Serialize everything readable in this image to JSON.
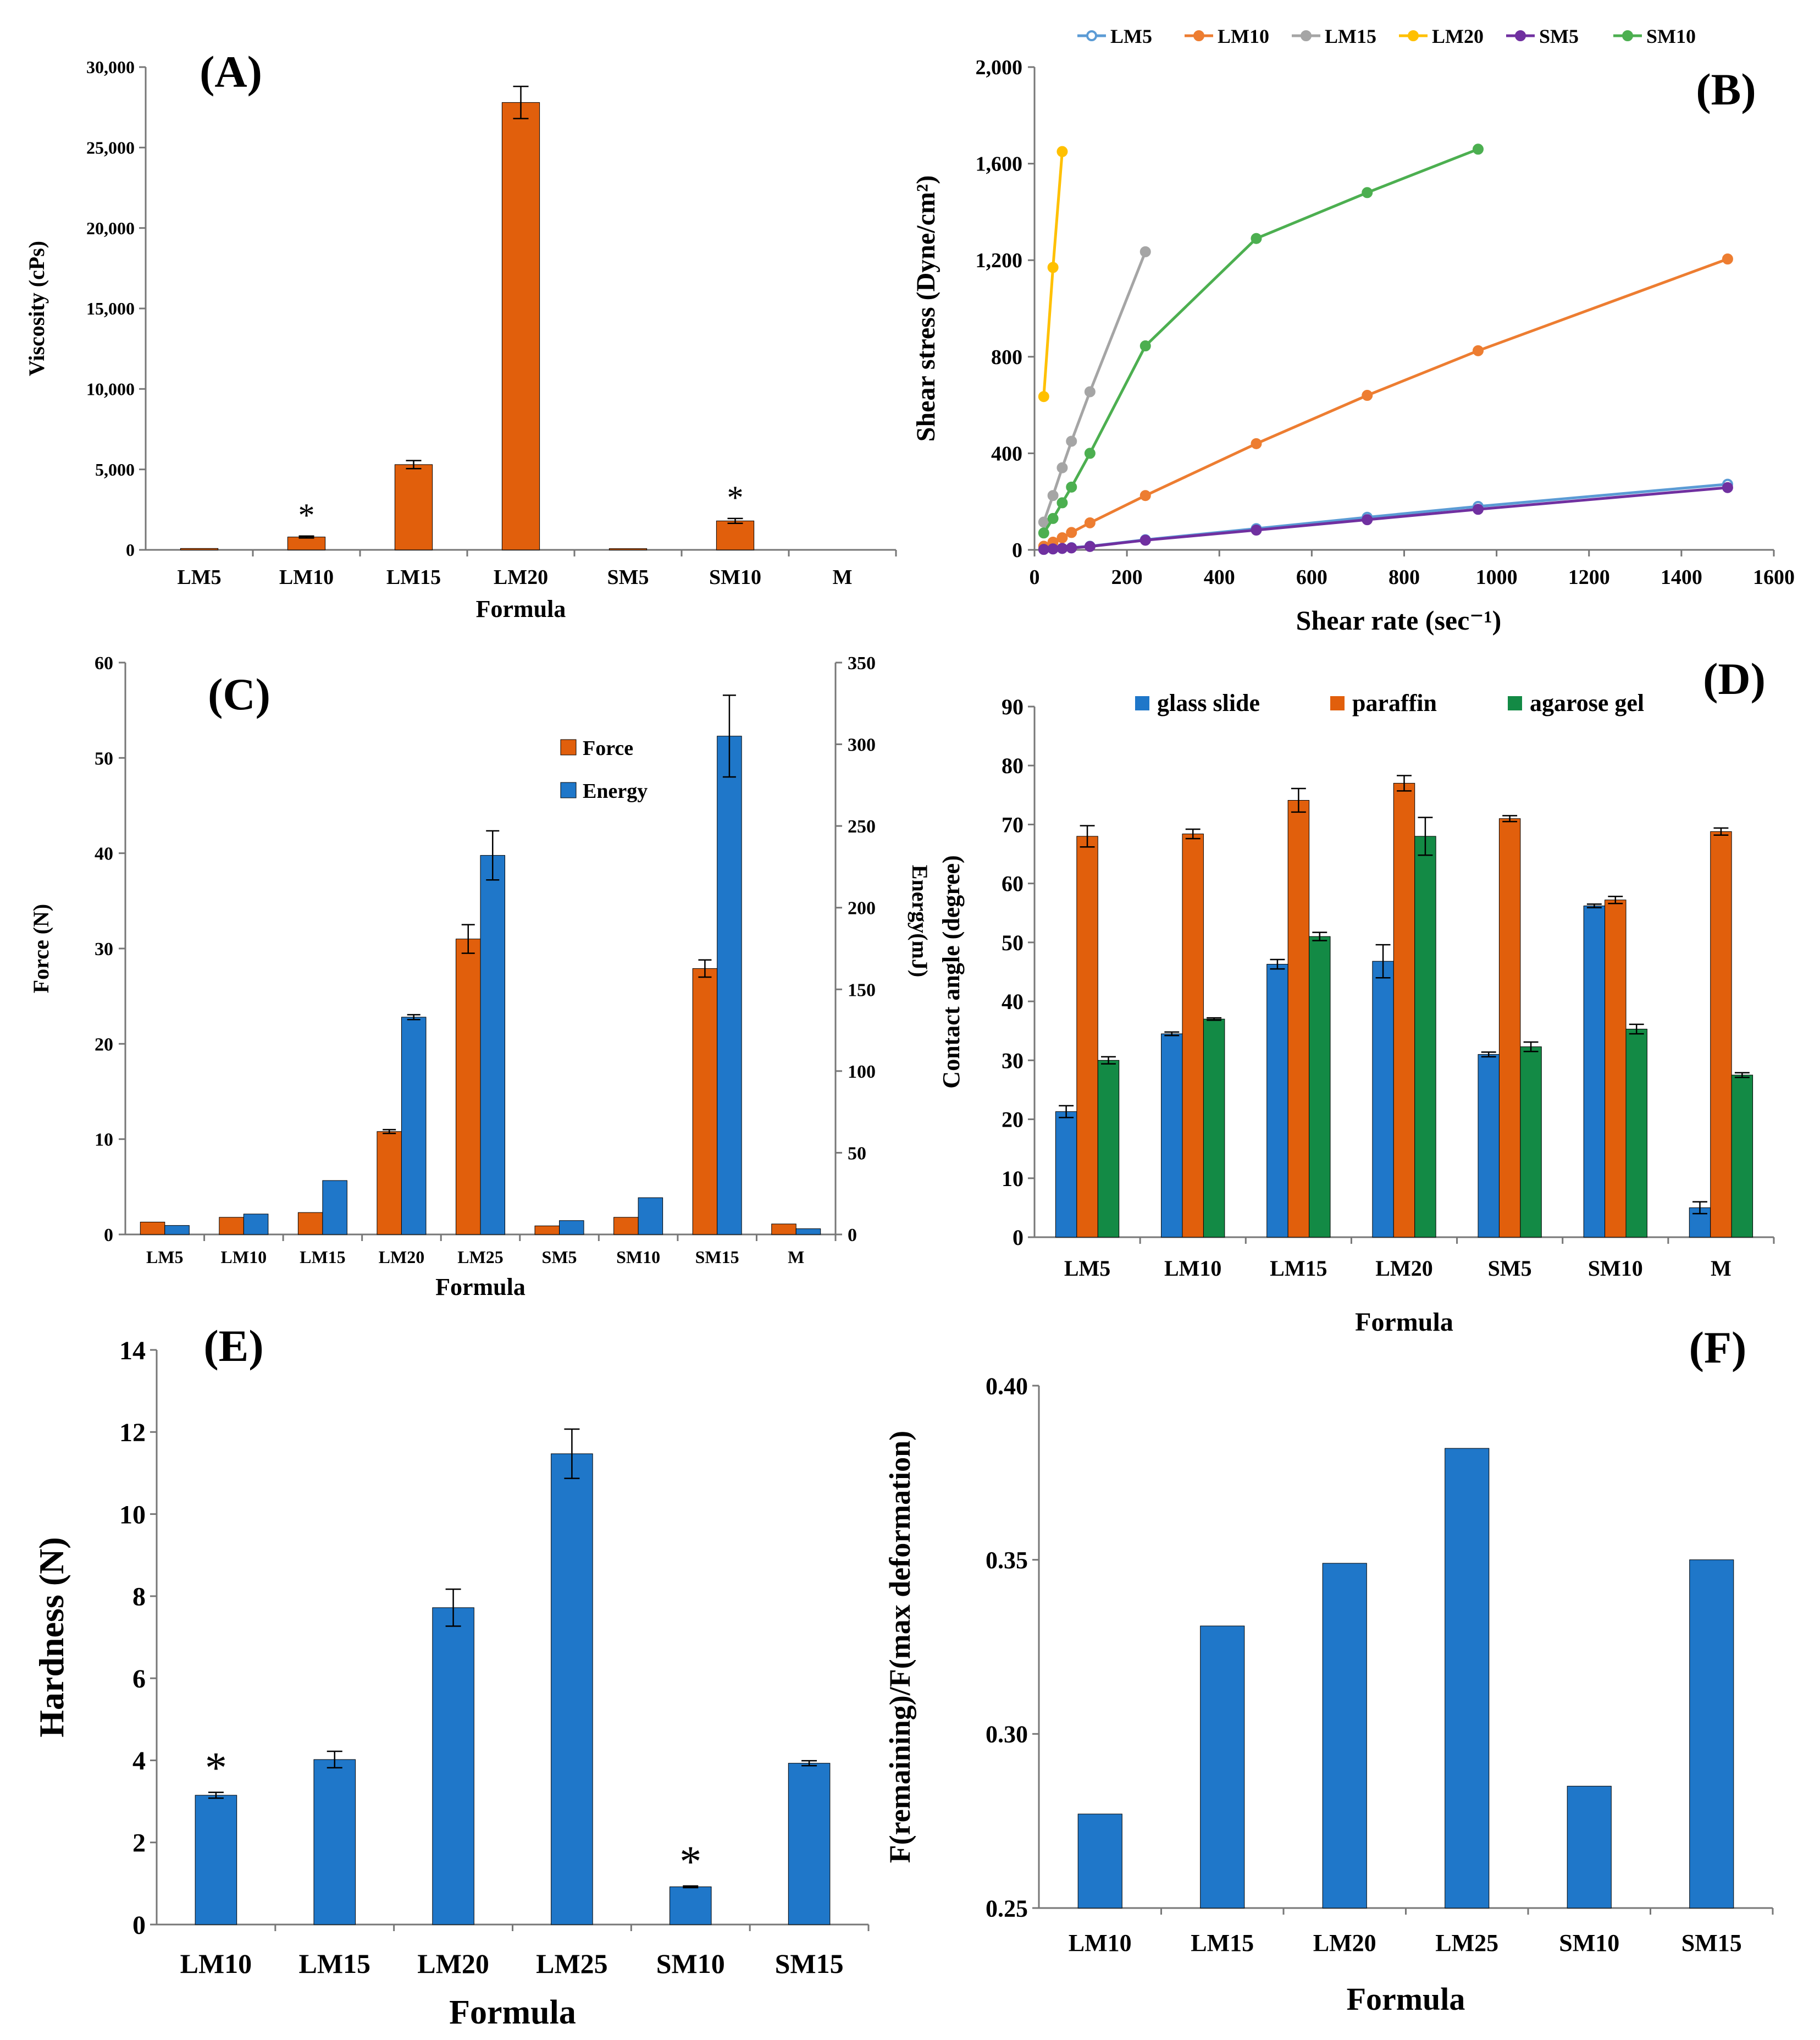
{
  "chart_data": [
    {
      "panel": "(A)",
      "type": "bar",
      "xlabel": "Formula",
      "ylabel": "Viscosity (cPs)",
      "ylim": [
        0,
        30000
      ],
      "yticks": [
        0,
        5000,
        10000,
        15000,
        20000,
        25000,
        30000
      ],
      "ytick_labels": [
        "0",
        "5,000",
        "10,000",
        "15,000",
        "20,000",
        "25,000",
        "30,000"
      ],
      "categories": [
        "LM5",
        "LM10",
        "LM15",
        "LM20",
        "SM5",
        "SM10",
        "M"
      ],
      "values": [
        90,
        800,
        5300,
        27800,
        80,
        1800,
        0
      ],
      "errors": [
        0,
        60,
        250,
        1000,
        0,
        150,
        0
      ],
      "marks": [
        "",
        "*",
        "",
        "",
        "",
        "*",
        ""
      ],
      "color": "#E15F0C"
    },
    {
      "panel": "(B)",
      "type": "line",
      "xlabel": "Shear rate (sec⁻¹)",
      "ylabel": "Shear stress (Dyne/cm²)",
      "xlim": [
        0,
        1600
      ],
      "ylim": [
        0,
        2000
      ],
      "xticks": [
        0,
        200,
        400,
        600,
        800,
        1000,
        1200,
        1400,
        1600
      ],
      "xtick_labels": [
        "0",
        "200",
        "400",
        "600",
        "800",
        "1000",
        "1200",
        "1400",
        "1600"
      ],
      "yticks": [
        0,
        400,
        800,
        1200,
        1600,
        2000
      ],
      "ytick_labels": [
        "0",
        "400",
        "800",
        "1,200",
        "1,600",
        "2,000"
      ],
      "legend": "top",
      "series": [
        {
          "name": "LM5",
          "color": "#5B9BD5",
          "marker": "open",
          "x": [
            20,
            40,
            60,
            80,
            120,
            240,
            480,
            720,
            960,
            1500
          ],
          "y": [
            2,
            4,
            6,
            9,
            15,
            42,
            88,
            135,
            180,
            272
          ]
        },
        {
          "name": "LM10",
          "color": "#ED7D31",
          "marker": "filled",
          "x": [
            20,
            40,
            60,
            80,
            120,
            240,
            480,
            720,
            960,
            1500
          ],
          "y": [
            15,
            32,
            50,
            72,
            112,
            225,
            440,
            640,
            825,
            1205
          ]
        },
        {
          "name": "LM15",
          "color": "#A5A5A5",
          "marker": "filled",
          "x": [
            20,
            40,
            60,
            80,
            120,
            240
          ],
          "y": [
            115,
            225,
            340,
            450,
            655,
            1235
          ]
        },
        {
          "name": "LM20",
          "color": "#FFC000",
          "marker": "filled",
          "x": [
            20,
            40,
            60
          ],
          "y": [
            635,
            1170,
            1650
          ]
        },
        {
          "name": "SM5",
          "color": "#7030A0",
          "marker": "filled",
          "x": [
            20,
            40,
            60,
            80,
            120,
            240,
            480,
            720,
            960,
            1500
          ],
          "y": [
            2,
            4,
            6,
            8,
            14,
            40,
            82,
            125,
            168,
            258
          ]
        },
        {
          "name": "SM10",
          "color": "#4CAF50",
          "marker": "filled",
          "x": [
            20,
            40,
            60,
            80,
            120,
            240,
            480,
            720,
            960
          ],
          "y": [
            70,
            130,
            195,
            260,
            400,
            845,
            1290,
            1480,
            1660
          ]
        }
      ]
    },
    {
      "panel": "(C)",
      "type": "bar",
      "xlabel": "Formula",
      "ylabel": "Force (N)",
      "ylabel_right": "Energy(mJ)",
      "ylim": [
        0,
        60
      ],
      "yticks": [
        0,
        10,
        20,
        30,
        40,
        50,
        60
      ],
      "ytick_labels": [
        "0",
        "10",
        "20",
        "30",
        "40",
        "50",
        "60"
      ],
      "ylim_right": [
        0,
        350
      ],
      "yticks_right": [
        0,
        50,
        100,
        150,
        200,
        250,
        300,
        350
      ],
      "ytick_labels_right": [
        "0",
        "50",
        "100",
        "150",
        "200",
        "250",
        "300",
        "350"
      ],
      "legend": "top-right",
      "categories": [
        "LM5",
        "LM10",
        "LM15",
        "LM20",
        "LM25",
        "SM5",
        "SM10",
        "SM15",
        "M"
      ],
      "series": [
        {
          "name": "Force",
          "axis": "left",
          "color": "#E15F0C",
          "values": [
            1.3,
            1.8,
            2.3,
            10.8,
            31.0,
            0.9,
            1.8,
            27.9,
            1.1
          ],
          "errors": [
            0,
            0,
            0,
            0.2,
            1.5,
            0,
            0,
            0.9,
            0
          ]
        },
        {
          "name": "Energy",
          "axis": "right",
          "color": "#1F77C9",
          "values": [
            5.5,
            12.5,
            33,
            133,
            232,
            8.5,
            22.5,
            305,
            3.5
          ],
          "errors": [
            0,
            0,
            0,
            1.5,
            15,
            0,
            0,
            25,
            0
          ]
        }
      ]
    },
    {
      "panel": "(D)",
      "type": "bar",
      "xlabel": "Formula",
      "ylabel": "Contact angle (degree)",
      "ylim": [
        0,
        90
      ],
      "yticks": [
        0,
        10,
        20,
        30,
        40,
        50,
        60,
        70,
        80,
        90
      ],
      "ytick_labels": [
        "0",
        "10",
        "20",
        "30",
        "40",
        "50",
        "60",
        "70",
        "80",
        "90"
      ],
      "legend": "top",
      "categories": [
        "LM5",
        "LM10",
        "LM15",
        "LM20",
        "SM5",
        "SM10",
        "M"
      ],
      "series": [
        {
          "name": "glass slide",
          "color": "#1F77C9",
          "values": [
            21.3,
            34.5,
            46.3,
            46.8,
            31.0,
            56.2,
            5.0
          ],
          "errors": [
            1.0,
            0.3,
            0.8,
            2.8,
            0.4,
            0.3,
            1.0
          ]
        },
        {
          "name": "paraffin",
          "color": "#E15F0C",
          "values": [
            68.0,
            68.4,
            74.1,
            77.0,
            71.0,
            57.2,
            68.8
          ],
          "errors": [
            1.8,
            0.8,
            2.0,
            1.3,
            0.5,
            0.6,
            0.6
          ]
        },
        {
          "name": "agarose gel",
          "color": "#138A45",
          "values": [
            30.0,
            37.0,
            51.0,
            68.0,
            32.3,
            35.3,
            27.5
          ],
          "errors": [
            0.6,
            0.2,
            0.7,
            3.2,
            0.8,
            0.8,
            0.4
          ]
        }
      ]
    },
    {
      "panel": "(E)",
      "type": "bar",
      "xlabel": "Formula",
      "ylabel": "Hardness (N)",
      "ylim": [
        0,
        14
      ],
      "yticks": [
        0,
        2,
        4,
        6,
        8,
        10,
        12,
        14
      ],
      "ytick_labels": [
        "0",
        "2",
        "4",
        "6",
        "8",
        "10",
        "12",
        "14"
      ],
      "categories": [
        "LM10",
        "LM15",
        "LM20",
        "LM25",
        "SM10",
        "SM15"
      ],
      "values": [
        3.15,
        4.02,
        7.72,
        11.47,
        0.92,
        3.93
      ],
      "errors": [
        0.07,
        0.2,
        0.45,
        0.6,
        0.02,
        0.06
      ],
      "marks": [
        "*",
        "",
        "",
        "",
        "*",
        ""
      ],
      "color": "#1F77C9"
    },
    {
      "panel": "(F)",
      "type": "bar",
      "xlabel": "Formula",
      "ylabel": "F(remaining)/F(max deformation)",
      "ylim": [
        0.25,
        0.4
      ],
      "yticks": [
        0.25,
        0.3,
        0.35,
        0.4
      ],
      "ytick_labels": [
        "0.25",
        "0.30",
        "0.35",
        "0.40"
      ],
      "categories": [
        "LM10",
        "LM15",
        "LM20",
        "LM25",
        "SM10",
        "SM15"
      ],
      "values": [
        0.277,
        0.331,
        0.349,
        0.382,
        0.285,
        0.35
      ],
      "color": "#1F77C9"
    }
  ]
}
